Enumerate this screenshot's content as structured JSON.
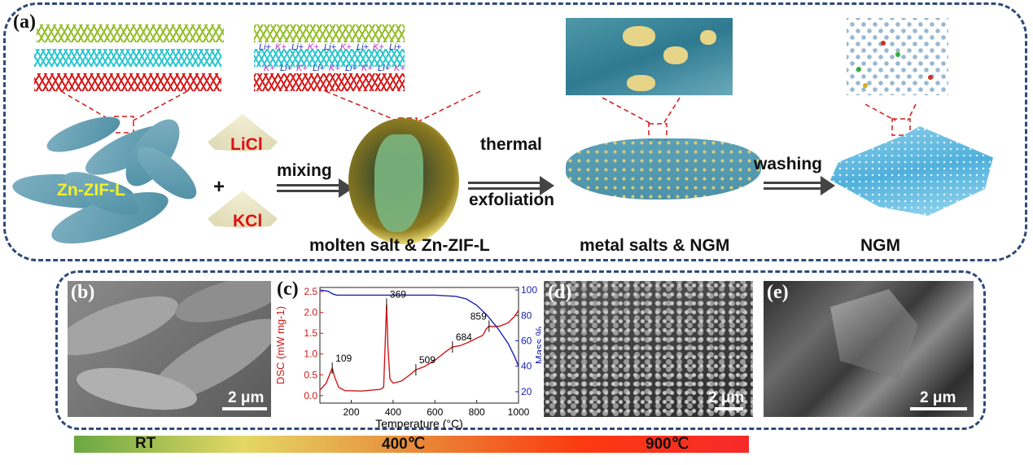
{
  "panel_a": {
    "label": "(a)",
    "precursor": "Zn-ZIF-L",
    "salt1": "LiCl",
    "salt2": "KCl",
    "plus": "+",
    "step1": "mixing",
    "stage2": "molten salt & Zn-ZIF-L",
    "step2_line1": "thermal",
    "step2_line2": "exfoliation",
    "stage3": "metal salts & NGM",
    "step3": "washing",
    "stage4": "NGM",
    "ions": [
      "Li+",
      "K+",
      "Li+",
      "K+",
      "Li+",
      "K+",
      "Li+",
      "K+",
      "Li+",
      "K+",
      "Li+",
      "K+",
      "Li+",
      "K+",
      "Li+",
      "K+",
      "Li+",
      "K+"
    ]
  },
  "panel_b": {
    "label": "(b)",
    "scale": "2 μm"
  },
  "panel_d": {
    "label": "(d)",
    "scale": "2 μm"
  },
  "panel_e": {
    "label": "(e)",
    "scale": "2 μm"
  },
  "temperature_bar": {
    "labels": [
      "RT",
      "400℃",
      "900℃"
    ],
    "colors": [
      "#6aa842",
      "#e4d865",
      "#e88c3a",
      "#fb3a10",
      "#f62a2a"
    ]
  },
  "chart_data": {
    "panel_label": "(c)",
    "type": "line",
    "xlabel": "Temperature (°C)",
    "ylabel_left": "DSC (mW mg-1)",
    "ylabel_right": "Mass %",
    "xlim": [
      50,
      1000
    ],
    "ylim_left": [
      -0.18,
      2.6
    ],
    "ylim_right": [
      11,
      102
    ],
    "xticks": [
      200,
      400,
      600,
      800,
      1000
    ],
    "yticks_left": [
      "0.0",
      "0.5",
      "1.0",
      "1.5",
      "2.0",
      "2.5"
    ],
    "yticks_right": [
      "20",
      "40",
      "60",
      "80",
      "100"
    ],
    "grid": false,
    "series": [
      {
        "axis": "left",
        "color": "#d01818",
        "x": [
          50,
          80,
          100,
          109,
          120,
          140,
          170,
          250,
          340,
          355,
          362,
          369,
          375,
          385,
          400,
          440,
          480,
          509,
          550,
          600,
          650,
          684,
          720,
          760,
          800,
          830,
          845,
          859,
          880,
          910,
          950,
          980,
          1000
        ],
        "y": [
          0.13,
          0.3,
          0.55,
          0.66,
          0.45,
          0.2,
          0.12,
          0.11,
          0.15,
          0.2,
          1.2,
          2.2,
          1.2,
          0.4,
          0.3,
          0.35,
          0.5,
          0.62,
          0.7,
          0.85,
          1.05,
          1.17,
          1.2,
          1.28,
          1.38,
          1.45,
          1.6,
          1.67,
          1.66,
          1.67,
          1.75,
          1.9,
          2.05
        ]
      },
      {
        "axis": "right",
        "color": "#1a22b0",
        "x": [
          50,
          90,
          110,
          130,
          300,
          600,
          700,
          750,
          800,
          850,
          900,
          950,
          980,
          1000
        ],
        "y": [
          100,
          99,
          97,
          96,
          96,
          96,
          95,
          93,
          88,
          80,
          70,
          58,
          48,
          40
        ]
      }
    ],
    "annotations": [
      {
        "x": 109,
        "y": 0.66,
        "text": "109"
      },
      {
        "x": 369,
        "y": 2.2,
        "text": "369"
      },
      {
        "x": 509,
        "y": 0.62,
        "text": "509"
      },
      {
        "x": 684,
        "y": 1.17,
        "text": "684"
      },
      {
        "x": 859,
        "y": 1.67,
        "text": "859"
      }
    ]
  }
}
